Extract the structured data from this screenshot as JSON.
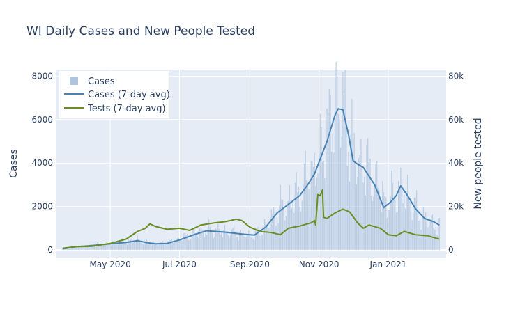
{
  "chart_data": {
    "type": "bar",
    "title": "WI Daily Cases and New People Tested",
    "ylabel": "Cases",
    "y2label": "New people tested",
    "ylim": [
      -350,
      8300
    ],
    "y2lim": [
      -3500,
      83000
    ],
    "xlim": [
      "2020-03-14",
      "2021-02-21"
    ],
    "x_ticks": [
      {
        "date": "2020-05-01",
        "label": "May 2020"
      },
      {
        "date": "2020-07-01",
        "label": "Jul 2020"
      },
      {
        "date": "2020-09-01",
        "label": "Sep 2020"
      },
      {
        "date": "2020-11-01",
        "label": "Nov 2020"
      },
      {
        "date": "2021-01-01",
        "label": "Jan 2021"
      }
    ],
    "y_ticks": [
      {
        "value": 0,
        "label": "0"
      },
      {
        "value": 2000,
        "label": "2000"
      },
      {
        "value": 4000,
        "label": "4000"
      },
      {
        "value": 6000,
        "label": "6000"
      },
      {
        "value": 8000,
        "label": "8000"
      }
    ],
    "y2_ticks": [
      {
        "value": 0,
        "label": "0"
      },
      {
        "value": 20000,
        "label": "20k"
      },
      {
        "value": 40000,
        "label": "40k"
      },
      {
        "value": 60000,
        "label": "60k"
      },
      {
        "value": 80000,
        "label": "80k"
      }
    ],
    "grid": true,
    "legend_position": "top-left",
    "series": [
      {
        "name": "Cases",
        "kind": "bar",
        "axis": "left",
        "color": "#b0c4de",
        "x_start": "2020-03-20",
        "x_end": "2021-02-15",
        "anchors": [
          [
            "2020-03-20",
            50
          ],
          [
            "2020-04-01",
            150
          ],
          [
            "2020-04-15",
            200
          ],
          [
            "2020-05-01",
            300
          ],
          [
            "2020-05-15",
            400
          ],
          [
            "2020-05-25",
            450
          ],
          [
            "2020-06-01",
            350
          ],
          [
            "2020-06-10",
            280
          ],
          [
            "2020-06-20",
            330
          ],
          [
            "2020-07-01",
            500
          ],
          [
            "2020-07-15",
            750
          ],
          [
            "2020-07-25",
            900
          ],
          [
            "2020-08-10",
            850
          ],
          [
            "2020-08-25",
            720
          ],
          [
            "2020-09-05",
            700
          ],
          [
            "2020-09-15",
            1100
          ],
          [
            "2020-09-25",
            1800
          ],
          [
            "2020-10-05",
            2200
          ],
          [
            "2020-10-15",
            2700
          ],
          [
            "2020-10-25",
            3500
          ],
          [
            "2020-11-01",
            4200
          ],
          [
            "2020-11-08",
            5200
          ],
          [
            "2020-11-15",
            6400
          ],
          [
            "2020-11-20",
            6600
          ],
          [
            "2020-11-27",
            5500
          ],
          [
            "2020-12-03",
            4200
          ],
          [
            "2020-12-10",
            3900
          ],
          [
            "2020-12-20",
            3200
          ],
          [
            "2020-12-30",
            2200
          ],
          [
            "2021-01-05",
            2400
          ],
          [
            "2021-01-12",
            2900
          ],
          [
            "2021-01-20",
            2300
          ],
          [
            "2021-01-28",
            1700
          ],
          [
            "2021-02-05",
            1350
          ],
          [
            "2021-02-15",
            1100
          ]
        ],
        "peak_value": 8000
      },
      {
        "name": "Cases (7-day avg)",
        "kind": "line",
        "axis": "left",
        "color": "#4682b4",
        "points": [
          [
            "2020-03-20",
            50
          ],
          [
            "2020-04-01",
            150
          ],
          [
            "2020-04-15",
            200
          ],
          [
            "2020-05-01",
            280
          ],
          [
            "2020-05-15",
            350
          ],
          [
            "2020-05-25",
            430
          ],
          [
            "2020-06-01",
            350
          ],
          [
            "2020-06-10",
            280
          ],
          [
            "2020-06-20",
            300
          ],
          [
            "2020-07-01",
            460
          ],
          [
            "2020-07-15",
            720
          ],
          [
            "2020-07-25",
            880
          ],
          [
            "2020-08-10",
            820
          ],
          [
            "2020-08-25",
            730
          ],
          [
            "2020-09-05",
            680
          ],
          [
            "2020-09-15",
            1050
          ],
          [
            "2020-09-25",
            1700
          ],
          [
            "2020-10-05",
            2100
          ],
          [
            "2020-10-15",
            2500
          ],
          [
            "2020-10-22",
            3000
          ],
          [
            "2020-10-28",
            3500
          ],
          [
            "2020-11-01",
            4050
          ],
          [
            "2020-11-08",
            5000
          ],
          [
            "2020-11-15",
            6200
          ],
          [
            "2020-11-18",
            6500
          ],
          [
            "2020-11-22",
            6450
          ],
          [
            "2020-11-27",
            5300
          ],
          [
            "2020-12-01",
            4100
          ],
          [
            "2020-12-05",
            3950
          ],
          [
            "2020-12-10",
            3800
          ],
          [
            "2020-12-20",
            3000
          ],
          [
            "2020-12-28",
            1950
          ],
          [
            "2021-01-03",
            2200
          ],
          [
            "2021-01-08",
            2500
          ],
          [
            "2021-01-12",
            2950
          ],
          [
            "2021-01-18",
            2500
          ],
          [
            "2021-01-25",
            1900
          ],
          [
            "2021-02-02",
            1450
          ],
          [
            "2021-02-10",
            1300
          ],
          [
            "2021-02-15",
            1150
          ]
        ]
      },
      {
        "name": "Tests (7-day avg)",
        "kind": "line",
        "axis": "right",
        "color": "#6b8e23",
        "points": [
          [
            "2020-03-20",
            800
          ],
          [
            "2020-04-01",
            1500
          ],
          [
            "2020-04-15",
            1700
          ],
          [
            "2020-05-01",
            3000
          ],
          [
            "2020-05-15",
            5000
          ],
          [
            "2020-05-25",
            8500
          ],
          [
            "2020-06-01",
            10000
          ],
          [
            "2020-06-05",
            12000
          ],
          [
            "2020-06-10",
            10800
          ],
          [
            "2020-06-20",
            9500
          ],
          [
            "2020-07-01",
            10000
          ],
          [
            "2020-07-10",
            9000
          ],
          [
            "2020-07-20",
            11500
          ],
          [
            "2020-08-01",
            12500
          ],
          [
            "2020-08-10",
            13000
          ],
          [
            "2020-08-15",
            13500
          ],
          [
            "2020-08-20",
            14200
          ],
          [
            "2020-08-25",
            13500
          ],
          [
            "2020-09-01",
            10500
          ],
          [
            "2020-09-10",
            8500
          ],
          [
            "2020-09-20",
            8000
          ],
          [
            "2020-09-28",
            7000
          ],
          [
            "2020-10-05",
            10000
          ],
          [
            "2020-10-15",
            11000
          ],
          [
            "2020-10-25",
            12500
          ],
          [
            "2020-10-28",
            13500
          ],
          [
            "2020-10-29",
            11500
          ],
          [
            "2020-10-31",
            25500
          ],
          [
            "2020-11-02",
            25000
          ],
          [
            "2020-11-04",
            27500
          ],
          [
            "2020-11-05",
            15000
          ],
          [
            "2020-11-08",
            14500
          ],
          [
            "2020-11-15",
            17000
          ],
          [
            "2020-11-22",
            18800
          ],
          [
            "2020-11-28",
            17500
          ],
          [
            "2020-12-05",
            12500
          ],
          [
            "2020-12-10",
            10000
          ],
          [
            "2020-12-15",
            11500
          ],
          [
            "2020-12-25",
            10000
          ],
          [
            "2021-01-01",
            7000
          ],
          [
            "2021-01-08",
            6500
          ],
          [
            "2021-01-15",
            8500
          ],
          [
            "2021-01-25",
            7000
          ],
          [
            "2021-02-05",
            6500
          ],
          [
            "2021-02-15",
            5000
          ]
        ]
      }
    ]
  }
}
